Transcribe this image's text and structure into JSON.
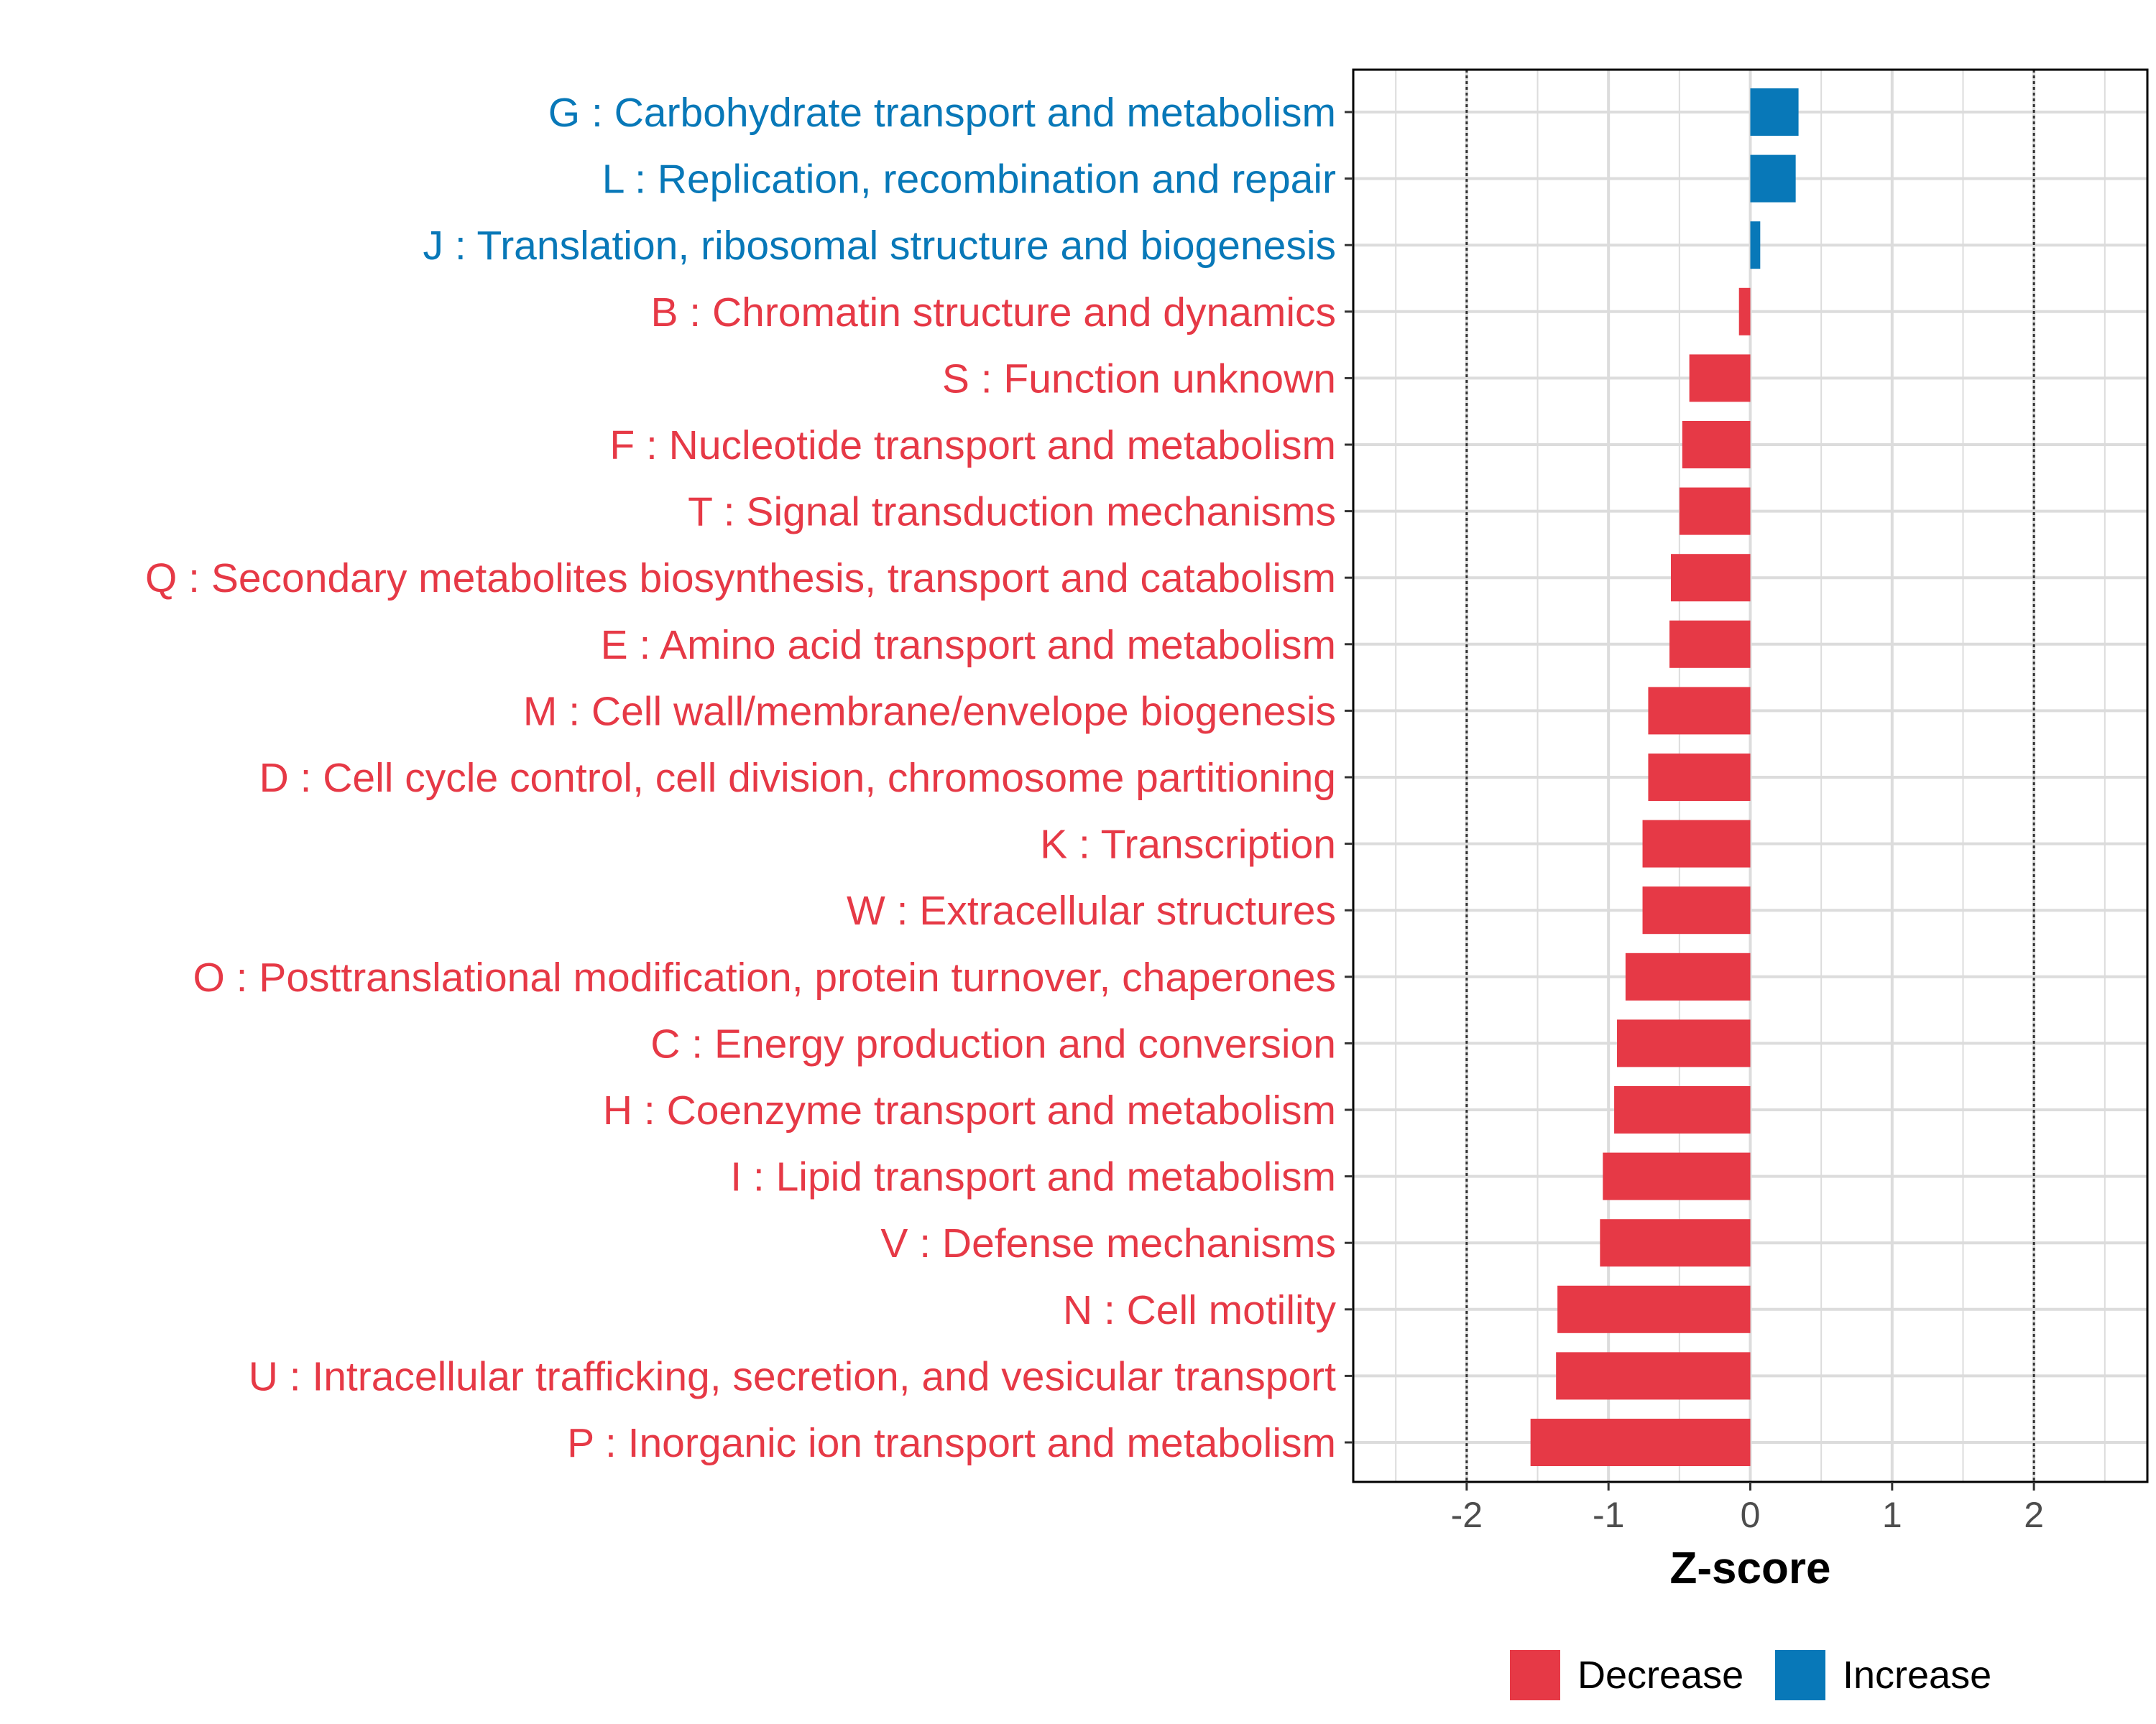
{
  "chart_data": {
    "type": "bar",
    "orientation": "horizontal",
    "xlabel": "Z-score",
    "xlim": [
      -2.8,
      2.8
    ],
    "xticks": [
      -2,
      -1,
      0,
      1,
      2
    ],
    "xtick_labels": [
      "-2",
      "-1",
      "0",
      "1",
      "2"
    ],
    "reference_lines": [
      -2,
      2
    ],
    "grid": true,
    "legend_position": "bottom",
    "colors": {
      "Decrease": "#e63946",
      "Increase": "#0878b8"
    },
    "legend": [
      {
        "name": "Decrease",
        "color": "#e63946"
      },
      {
        "name": "Increase",
        "color": "#0878b8"
      }
    ],
    "categories": [
      "G : Carbohydrate transport and metabolism",
      "L : Replication, recombination and repair",
      "J : Translation, ribosomal structure and biogenesis",
      "B : Chromatin structure and dynamics",
      "S : Function unknown",
      "F : Nucleotide transport and metabolism",
      "T : Signal transduction mechanisms",
      "Q : Secondary metabolites biosynthesis, transport and catabolism",
      "E : Amino acid transport and metabolism",
      "M : Cell wall/membrane/envelope biogenesis",
      "D : Cell cycle control, cell division, chromosome partitioning",
      "K : Transcription",
      "W : Extracellular structures",
      "O : Posttranslational modification, protein turnover, chaperones",
      "C : Energy production and conversion",
      "H : Coenzyme transport and metabolism",
      "I : Lipid transport and metabolism",
      "V : Defense mechanisms",
      "N : Cell motility",
      "U : Intracellular trafficking, secretion, and vesicular transport",
      "P : Inorganic ion transport and metabolism"
    ],
    "values": [
      0.34,
      0.32,
      0.07,
      -0.08,
      -0.43,
      -0.48,
      -0.5,
      -0.56,
      -0.57,
      -0.72,
      -0.72,
      -0.76,
      -0.76,
      -0.88,
      -0.94,
      -0.96,
      -1.04,
      -1.06,
      -1.36,
      -1.37,
      -1.55
    ],
    "groups": [
      "Increase",
      "Increase",
      "Increase",
      "Decrease",
      "Decrease",
      "Decrease",
      "Decrease",
      "Decrease",
      "Decrease",
      "Decrease",
      "Decrease",
      "Decrease",
      "Decrease",
      "Decrease",
      "Decrease",
      "Decrease",
      "Decrease",
      "Decrease",
      "Decrease",
      "Decrease",
      "Decrease"
    ]
  }
}
